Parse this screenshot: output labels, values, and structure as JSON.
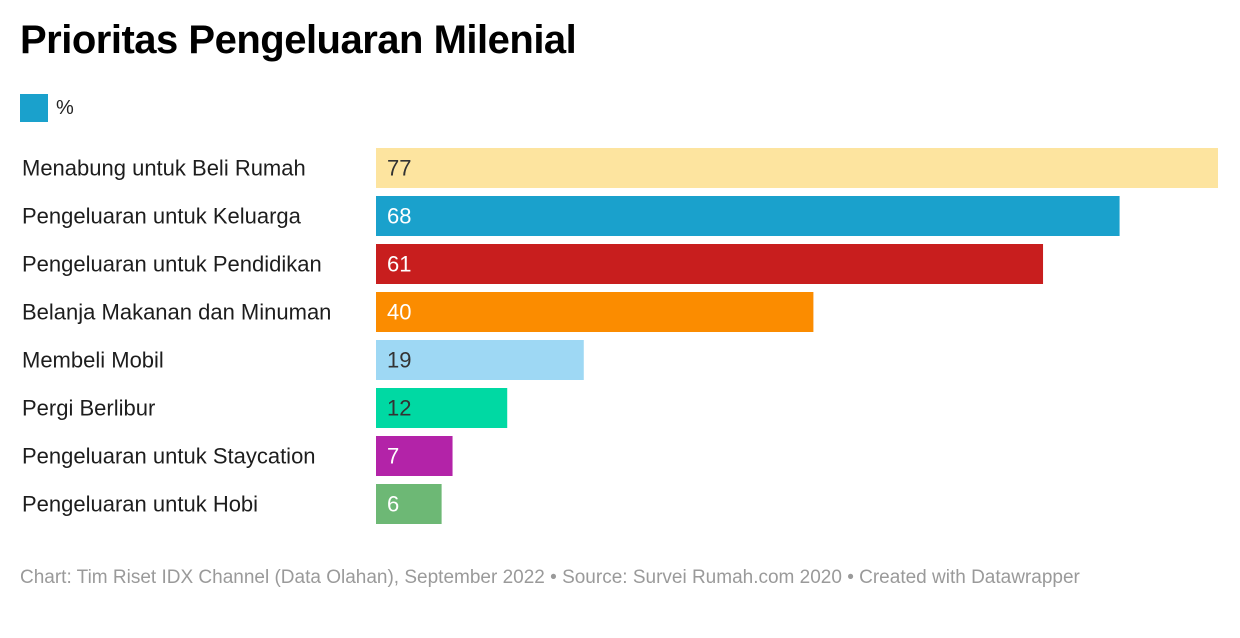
{
  "chart_data": {
    "type": "bar",
    "orientation": "horizontal",
    "title": "Prioritas Pengeluaran Milenial",
    "legend": [
      {
        "label": "%",
        "color": "#1aa1cc"
      }
    ],
    "categories": [
      "Menabung untuk Beli Rumah",
      "Pengeluaran untuk Keluarga",
      "Pengeluaran untuk Pendidikan",
      "Belanja Makanan dan Minuman",
      "Membeli Mobil",
      "Pergi Berlibur",
      "Pengeluaran untuk Staycation",
      "Pengeluaran untuk Hobi"
    ],
    "values": [
      77,
      68,
      61,
      40,
      19,
      12,
      7,
      6
    ],
    "colors": [
      "#fde49f",
      "#1aa1cc",
      "#c81e1e",
      "#fb8c00",
      "#9ed8f4",
      "#00d9a3",
      "#b323a8",
      "#6db875"
    ],
    "value_label_colors": [
      "#333333",
      "#ffffff",
      "#ffffff",
      "#ffffff",
      "#333333",
      "#333333",
      "#ffffff",
      "#ffffff"
    ],
    "xlim": [
      0,
      77
    ],
    "grid": false
  },
  "footer": {
    "text": "Chart: Tim Riset IDX Channel (Data Olahan), September 2022 • Source: Survei Rumah.com 2020 • Created with Datawrapper"
  }
}
